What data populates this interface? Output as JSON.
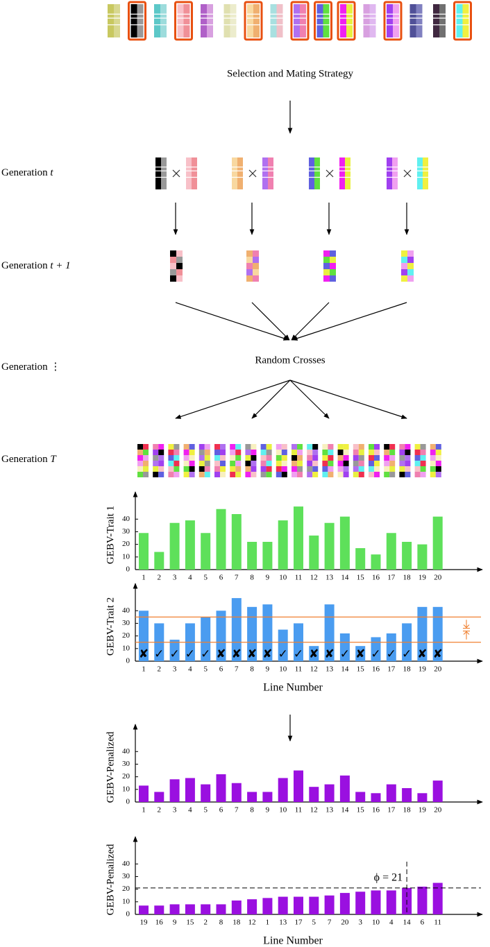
{
  "diagram": {
    "step_selection": "Selection and Mating Strategy",
    "step_crosses": "Random Crosses",
    "generations": [
      {
        "text": "Generation",
        "math": "t"
      },
      {
        "text": "Generation",
        "math": "t + 1"
      },
      {
        "text": "Generation",
        "math": "⋮"
      },
      {
        "text": "Generation",
        "math": "T"
      }
    ]
  },
  "chart_data": [
    {
      "type": "bar",
      "ylabel": "GEBV-Trait 1",
      "color": "#5ee05a",
      "categories": [
        "1",
        "2",
        "3",
        "4",
        "5",
        "6",
        "7",
        "8",
        "9",
        "10",
        "11",
        "12",
        "13",
        "14",
        "15",
        "16",
        "17",
        "18",
        "19",
        "20"
      ],
      "values": [
        29,
        14,
        37,
        39,
        29,
        48,
        44,
        22,
        22,
        39,
        50,
        27,
        37,
        42,
        17,
        12,
        29,
        22,
        20,
        42
      ],
      "ylim": [
        0,
        55
      ],
      "yticks": [
        0,
        10,
        20,
        30,
        40
      ]
    },
    {
      "type": "bar",
      "ylabel": "GEBV-Trait 2",
      "xlabel": "Line Number",
      "color": "#4a9cf0",
      "categories": [
        "1",
        "2",
        "3",
        "4",
        "5",
        "6",
        "7",
        "8",
        "9",
        "10",
        "11",
        "12",
        "13",
        "14",
        "15",
        "16",
        "17",
        "18",
        "19",
        "20"
      ],
      "values": [
        40,
        30,
        17,
        30,
        35,
        40,
        50,
        43,
        45,
        25,
        30,
        12,
        45,
        22,
        12,
        19,
        22,
        30,
        43,
        43
      ],
      "selection": [
        "✘",
        "✓",
        "✓",
        "✓",
        "✓",
        "✘",
        "✘",
        "✘",
        "✘",
        "✓",
        "✓",
        "✘",
        "✘",
        "✓",
        "✘",
        "✓",
        "✓",
        "✓",
        "✘",
        "✘"
      ],
      "thresholds": [
        35,
        15
      ],
      "threshold_color": "#f08030",
      "ylim": [
        0,
        55
      ],
      "yticks": [
        0,
        10,
        20,
        30,
        40
      ]
    },
    {
      "type": "bar",
      "ylabel": "GEBV-Penalized",
      "color": "#9a10e0",
      "categories": [
        "1",
        "2",
        "3",
        "4",
        "5",
        "6",
        "7",
        "8",
        "9",
        "10",
        "11",
        "12",
        "13",
        "14",
        "15",
        "16",
        "17",
        "18",
        "19",
        "20"
      ],
      "values": [
        13,
        8,
        18,
        19,
        14,
        22,
        15,
        8,
        8,
        19,
        25,
        12,
        14,
        21,
        8,
        7,
        14,
        11,
        7,
        17
      ],
      "ylim": [
        0,
        55
      ],
      "yticks": [
        0,
        10,
        20,
        30,
        40
      ]
    },
    {
      "type": "bar",
      "ylabel": "GEBV-Penalized",
      "xlabel": "Line Number",
      "color": "#9a10e0",
      "categories": [
        "19",
        "16",
        "9",
        "15",
        "2",
        "8",
        "18",
        "12",
        "1",
        "13",
        "17",
        "5",
        "7",
        "20",
        "3",
        "10",
        "4",
        "14",
        "6",
        "11"
      ],
      "values": [
        7,
        7,
        8,
        8,
        8,
        8,
        11,
        12,
        13,
        14,
        14,
        14,
        15,
        17,
        18,
        19,
        19,
        21,
        22,
        25
      ],
      "threshold": {
        "value": 21,
        "label": "ϕ = 21"
      },
      "ylim": [
        0,
        55
      ],
      "yticks": [
        0,
        10,
        20,
        30,
        40
      ]
    }
  ]
}
